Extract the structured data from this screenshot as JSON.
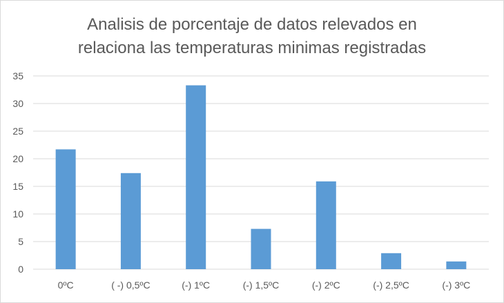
{
  "chart_data": {
    "type": "bar",
    "title_lines": [
      "Analisis de porcentaje de datos relevados en",
      "relaciona las temperaturas minimas registradas"
    ],
    "xlabel": "",
    "ylabel": "",
    "categories": [
      "0ºC",
      "( -) 0,5ºC",
      "(-) 1ºC",
      "(-) 1,5ºC",
      "(-) 2ºC",
      "(-) 2,5ºC",
      "(-) 3ºC"
    ],
    "values": [
      21.7,
      17.4,
      33.3,
      7.3,
      15.9,
      2.9,
      1.4
    ],
    "ylim": [
      0,
      35
    ],
    "yticks": [
      0,
      5,
      10,
      15,
      20,
      25,
      30,
      35
    ],
    "grid": true,
    "legend": "none",
    "bar_color": "#5b9bd5",
    "grid_color": "#d9d9d9",
    "text_color": "#595959"
  }
}
